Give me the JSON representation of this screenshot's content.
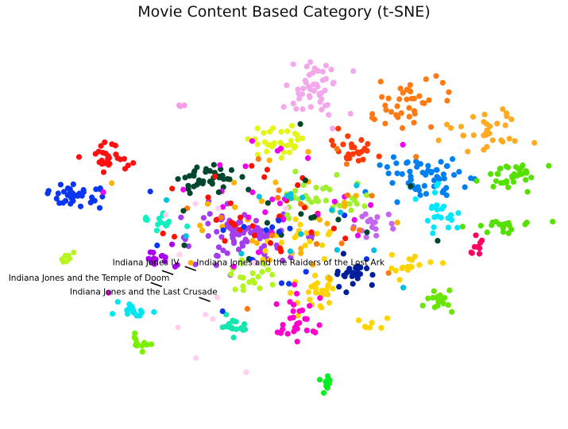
{
  "chart_data": {
    "type": "scatter",
    "title": "Movie Content Based Category (t-SNE)",
    "xlabel": "",
    "ylabel": "",
    "axes_visible": false,
    "grid": false,
    "legend": "none",
    "xlim": [
      0,
      100
    ],
    "ylim": [
      0,
      100
    ],
    "marker": "circle",
    "clusters": [
      {
        "color": "#f4a8ec",
        "center": [
          55.5,
          14.5
        ],
        "spread": [
          3.6,
          4.2
        ],
        "count": 48
      },
      {
        "color": "#ff7a12",
        "center": [
          71.5,
          18.5
        ],
        "spread": [
          3.8,
          3.6
        ],
        "count": 40
      },
      {
        "color": "#ffaa22",
        "center": [
          85.5,
          25.5
        ],
        "spread": [
          3.8,
          3.2
        ],
        "count": 32
      },
      {
        "color": "#ff1010",
        "center": [
          20.0,
          32.5
        ],
        "spread": [
          2.2,
          2.6
        ],
        "count": 26
      },
      {
        "color": "#0a36f0",
        "center": [
          13.5,
          42.0
        ],
        "spread": [
          3.4,
          1.7
        ],
        "count": 36
      },
      {
        "color": "#00472e",
        "center": [
          37.5,
          38.0
        ],
        "spread": [
          3.6,
          2.3
        ],
        "count": 34
      },
      {
        "color": "#e4f518",
        "center": [
          48.0,
          28.5
        ],
        "spread": [
          2.6,
          2.5
        ],
        "count": 32
      },
      {
        "color": "#ff3a08",
        "center": [
          62.0,
          30.0
        ],
        "spread": [
          2.8,
          2.4
        ],
        "count": 24
      },
      {
        "color": "#0080f0",
        "center": [
          74.5,
          37.0
        ],
        "spread": [
          4.4,
          2.8
        ],
        "count": 56
      },
      {
        "color": "#55e000",
        "center": [
          90.0,
          36.5
        ],
        "spread": [
          3.0,
          2.2
        ],
        "count": 36
      },
      {
        "color": "#55e000",
        "center": [
          89.0,
          49.5
        ],
        "spread": [
          3.6,
          1.2
        ],
        "count": 18
      },
      {
        "color": "#00e8ff",
        "center": [
          77.0,
          46.5
        ],
        "spread": [
          1.8,
          3.4
        ],
        "count": 22
      },
      {
        "color": "#ff0060",
        "center": [
          83.5,
          55.0
        ],
        "spread": [
          1.6,
          1.5
        ],
        "count": 9
      },
      {
        "color": "#11f0c0",
        "center": [
          28.0,
          48.0
        ],
        "spread": [
          2.0,
          1.8
        ],
        "count": 16
      },
      {
        "color": "#a43cf0",
        "center": [
          42.5,
          51.5
        ],
        "spread": [
          5.6,
          4.0
        ],
        "count": 90
      },
      {
        "color": "#a0f030",
        "center": [
          57.0,
          43.0
        ],
        "spread": [
          5.0,
          2.8
        ],
        "count": 40
      },
      {
        "color": "#c466f0",
        "center": [
          66.0,
          49.0
        ],
        "spread": [
          2.4,
          1.8
        ],
        "count": 16
      },
      {
        "color": "#001f9a",
        "center": [
          62.5,
          61.5
        ],
        "spread": [
          2.4,
          2.4
        ],
        "count": 26
      },
      {
        "color": "#ffd400",
        "center": [
          55.5,
          64.0
        ],
        "spread": [
          2.4,
          3.2
        ],
        "count": 28
      },
      {
        "color": "#ffd400",
        "center": [
          72.0,
          59.0
        ],
        "spread": [
          3.4,
          1.6
        ],
        "count": 16
      },
      {
        "color": "#ffd400",
        "center": [
          65.5,
          73.5
        ],
        "spread": [
          1.5,
          1.1
        ],
        "count": 8
      },
      {
        "color": "#ffd400",
        "center": [
          50.5,
          52.0
        ],
        "spread": [
          5.0,
          2.6
        ],
        "count": 20
      },
      {
        "color": "#b3f520",
        "center": [
          43.5,
          62.0
        ],
        "spread": [
          2.6,
          2.0
        ],
        "count": 20
      },
      {
        "color": "#aa00f0",
        "center": [
          28.5,
          57.5
        ],
        "spread": [
          2.0,
          1.6
        ],
        "count": 14
      },
      {
        "color": "#14e6b0",
        "center": [
          41.0,
          74.0
        ],
        "spread": [
          1.5,
          1.8
        ],
        "count": 16
      },
      {
        "color": "#00e6f0",
        "center": [
          23.5,
          71.0
        ],
        "spread": [
          2.0,
          1.3
        ],
        "count": 16
      },
      {
        "color": "#ff00cc",
        "center": [
          52.5,
          72.5
        ],
        "spread": [
          2.4,
          3.0
        ],
        "count": 30
      },
      {
        "color": "#66e600",
        "center": [
          77.5,
          68.0
        ],
        "spread": [
          1.5,
          1.9
        ],
        "count": 16
      },
      {
        "color": "#b8f520",
        "center": [
          12.0,
          57.0
        ],
        "spread": [
          1.0,
          0.8
        ],
        "count": 7
      },
      {
        "color": "#7af000",
        "center": [
          24.5,
          78.5
        ],
        "spread": [
          1.2,
          1.5
        ],
        "count": 12
      },
      {
        "color": "#00f020",
        "center": [
          57.5,
          89.5
        ],
        "spread": [
          0.6,
          1.2
        ],
        "count": 14
      },
      {
        "color": "#f49ee8",
        "center": [
          32.0,
          19.5
        ],
        "spread": [
          0.5,
          0.2
        ],
        "count": 3
      },
      {
        "color": "#ff1000",
        "center": [
          48.0,
          44.0
        ],
        "spread": [
          12.0,
          10.0
        ],
        "count": 30
      },
      {
        "color": "#ffb300",
        "center": [
          50.0,
          48.0
        ],
        "spread": [
          14.0,
          10.0
        ],
        "count": 28
      },
      {
        "color": "#f000f0",
        "center": [
          46.0,
          46.0
        ],
        "spread": [
          15.0,
          11.0
        ],
        "count": 28
      },
      {
        "color": "#ff7a12",
        "center": [
          55.0,
          46.0
        ],
        "spread": [
          12.0,
          10.0
        ],
        "count": 18
      },
      {
        "color": "#00472e",
        "center": [
          52.0,
          47.0
        ],
        "spread": [
          14.0,
          8.0
        ],
        "count": 18
      },
      {
        "color": "#0a36f0",
        "center": [
          46.0,
          56.0
        ],
        "spread": [
          14.0,
          12.0
        ],
        "count": 16
      },
      {
        "color": "#00c0e0",
        "center": [
          55.0,
          50.0
        ],
        "spread": [
          14.0,
          10.0
        ],
        "count": 16
      },
      {
        "color": "#ffd0f0",
        "center": [
          40.0,
          58.0
        ],
        "spread": [
          12.0,
          12.0
        ],
        "count": 12
      }
    ],
    "annotations": [
      {
        "text": "Indiana Jones IV",
        "point": [
          30.5,
          61.5
        ],
        "text_pos": [
          19.8,
          59.2
        ],
        "align": "start"
      },
      {
        "text": "Indiana Jones and the Raiders of the Lost Ark",
        "point": [
          34.5,
          60.5
        ],
        "text_pos": [
          34.6,
          59.2
        ],
        "align": "start"
      },
      {
        "text": "Indiana Jones and the Temple of Doom",
        "point": [
          28.5,
          64.5
        ],
        "text_pos": [
          1.5,
          63.0
        ],
        "align": "start"
      },
      {
        "text": "Indiana Jones and the Last Crusade",
        "point": [
          37.0,
          68.2
        ],
        "text_pos": [
          12.3,
          66.5
        ],
        "align": "start"
      }
    ]
  }
}
